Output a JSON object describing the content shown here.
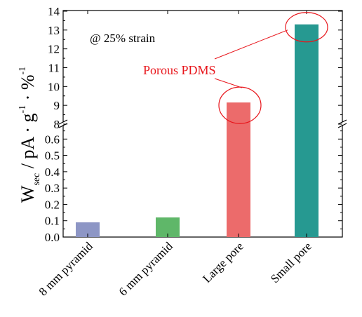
{
  "chart_data": {
    "type": "bar",
    "categories": [
      "8 mm pyramid",
      "6 mm pyramid",
      "Large pore",
      "Small pore"
    ],
    "values": [
      0.09,
      0.12,
      9.15,
      13.3
    ],
    "colors": [
      "#8d96c5",
      "#5fb769",
      "#ec6b6b",
      "#269991"
    ],
    "ylabel": {
      "main": "W",
      "sub": "sec",
      "rest": " / pA · g",
      "sup1": "-1",
      "mid": " · %",
      "sup2": "-1"
    },
    "axis_break": true,
    "lower_segment": {
      "ylim": [
        0,
        0.7
      ],
      "ticks": [
        0.0,
        0.1,
        0.2,
        0.3,
        0.4,
        0.5,
        0.6
      ]
    },
    "upper_segment": {
      "ylim": [
        8,
        14
      ],
      "ticks": [
        8,
        9,
        10,
        11,
        12,
        13,
        14
      ]
    },
    "tick_labels_lower": [
      "0.0",
      "0.1",
      "0.2",
      "0.3",
      "0.4",
      "0.5",
      "0.6"
    ],
    "tick_labels_upper": [
      "8",
      "9",
      "10",
      "11",
      "12",
      "13",
      "14"
    ],
    "annotations": {
      "strain": "@ 25%  strain",
      "porous": "Porous PDMS",
      "porous_color": "#e8151b"
    },
    "grid": false,
    "legend": "none"
  }
}
